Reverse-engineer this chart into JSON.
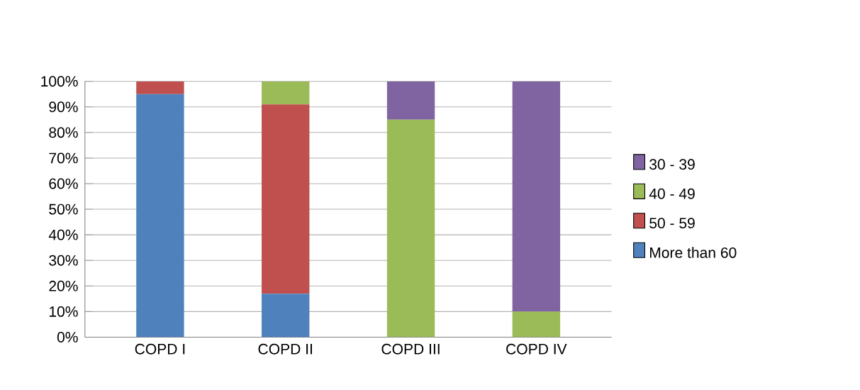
{
  "chart_data": {
    "type": "bar",
    "stacked": true,
    "categories": [
      "COPD I",
      "COPD II",
      "COPD III",
      "COPD IV"
    ],
    "series": [
      {
        "name": "More than 60",
        "color": "#4f81bd",
        "values": [
          95,
          17,
          0,
          0
        ]
      },
      {
        "name": "50 - 59",
        "color": "#c0504d",
        "values": [
          5,
          74,
          0,
          0
        ]
      },
      {
        "name": "40 - 49",
        "color": "#9bbb59",
        "values": [
          0,
          9,
          85,
          10
        ]
      },
      {
        "name": "30 - 39",
        "color": "#8064a2",
        "values": [
          0,
          0,
          15,
          90
        ]
      }
    ],
    "ylim": [
      0,
      100
    ],
    "yticks": [
      {
        "value": 0,
        "label": "0%"
      },
      {
        "value": 10,
        "label": "10%"
      },
      {
        "value": 20,
        "label": "20%"
      },
      {
        "value": 30,
        "label": "30%"
      },
      {
        "value": 40,
        "label": "40%"
      },
      {
        "value": 50,
        "label": "50%"
      },
      {
        "value": 60,
        "label": "60%"
      },
      {
        "value": 70,
        "label": "70%"
      },
      {
        "value": 80,
        "label": "80%"
      },
      {
        "value": 90,
        "label": "90%"
      },
      {
        "value": 100,
        "label": "100%"
      }
    ],
    "grid": "y",
    "legend": "right"
  }
}
